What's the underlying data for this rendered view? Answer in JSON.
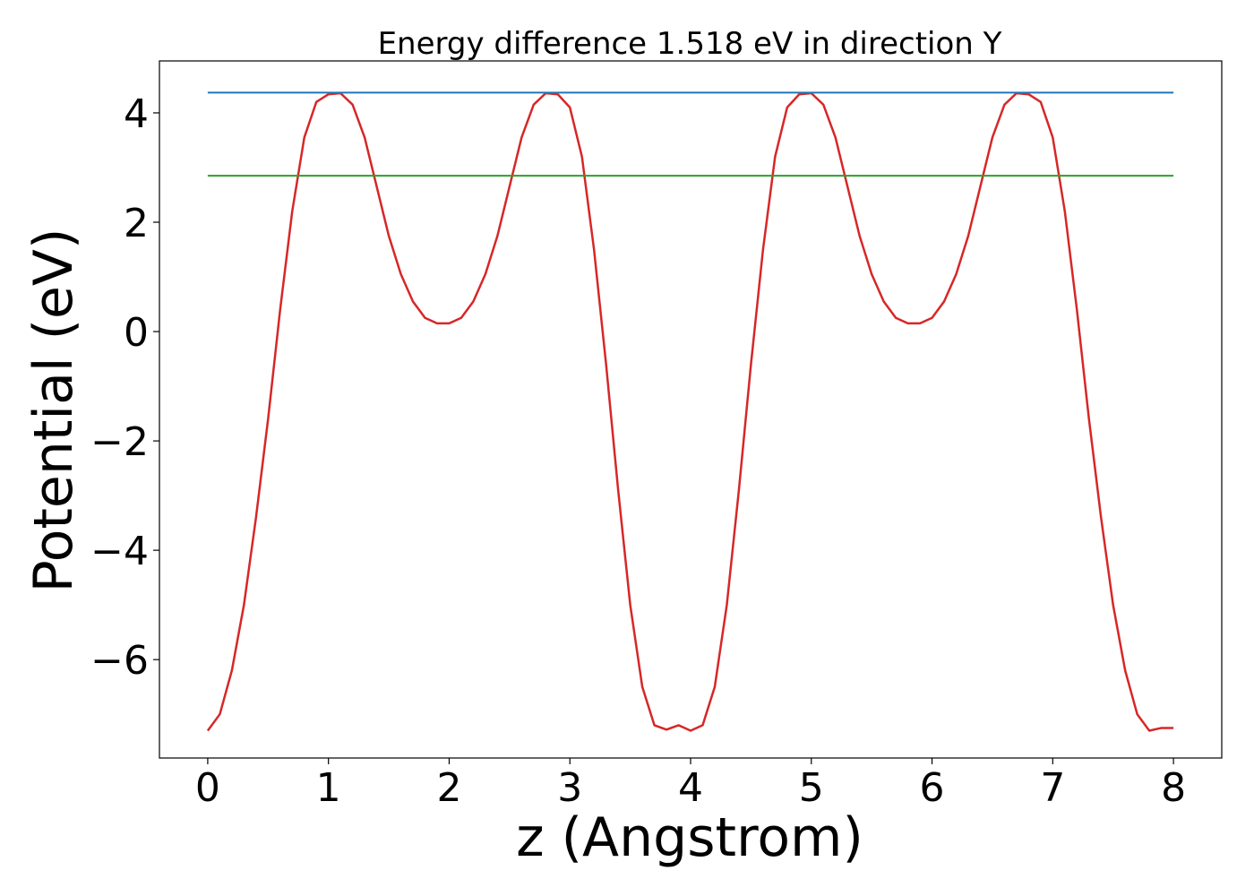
{
  "chart_data": {
    "type": "line",
    "title": "Energy difference 1.518 eV in direction Y",
    "xlabel": "z (Angstrom)",
    "ylabel": "Potential (eV)",
    "xlim": [
      -0.4,
      8.4
    ],
    "ylim": [
      -7.8,
      4.95
    ],
    "xticks": [
      0,
      1,
      2,
      3,
      4,
      5,
      6,
      7,
      8
    ],
    "xtick_labels": [
      "0",
      "1",
      "2",
      "3",
      "4",
      "5",
      "6",
      "7",
      "8"
    ],
    "yticks": [
      -6,
      -4,
      -2,
      0,
      2,
      4
    ],
    "ytick_labels": [
      "−6",
      "−4",
      "−2",
      "0",
      "2",
      "4"
    ],
    "grid": false,
    "series": [
      {
        "color": "#d62728",
        "x": [
          0,
          0.1,
          0.2,
          0.3,
          0.4,
          0.5,
          0.6,
          0.7,
          0.8,
          0.9,
          1.0,
          1.1,
          1.2,
          1.3,
          1.4,
          1.5,
          1.6,
          1.7,
          1.8,
          1.9,
          2.0,
          2.1,
          2.2,
          2.3,
          2.4,
          2.5,
          2.6,
          2.7,
          2.8,
          2.9,
          3.0,
          3.1,
          3.2,
          3.3,
          3.4,
          3.5,
          3.6,
          3.7,
          3.8,
          3.9,
          4.0,
          4.1,
          4.2,
          4.3,
          4.4,
          4.5,
          4.6,
          4.7,
          4.8,
          4.9,
          5.0,
          5.1,
          5.2,
          5.3,
          5.4,
          5.5,
          5.6,
          5.7,
          5.8,
          5.9,
          6.0,
          6.1,
          6.2,
          6.3,
          6.4,
          6.5,
          6.6,
          6.7,
          6.8,
          6.9,
          7.0,
          7.1,
          7.2,
          7.3,
          7.4,
          7.5,
          7.6,
          7.7,
          7.8,
          7.9,
          8.0
        ],
        "y": [
          -7.3,
          -7.0,
          -6.2,
          -5.0,
          -3.4,
          -1.6,
          0.4,
          2.2,
          3.55,
          4.2,
          4.34,
          4.36,
          4.15,
          3.55,
          2.65,
          1.75,
          1.05,
          0.55,
          0.25,
          0.15,
          0.15,
          0.25,
          0.55,
          1.05,
          1.75,
          2.65,
          3.55,
          4.15,
          4.36,
          4.34,
          4.1,
          3.2,
          1.5,
          -0.6,
          -2.9,
          -5.0,
          -6.5,
          -7.2,
          -7.28,
          -7.2,
          -7.3,
          -7.2,
          -6.5,
          -5.0,
          -2.9,
          -0.6,
          1.5,
          3.2,
          4.1,
          4.34,
          4.36,
          4.15,
          3.55,
          2.65,
          1.75,
          1.05,
          0.55,
          0.25,
          0.15,
          0.15,
          0.25,
          0.55,
          1.05,
          1.75,
          2.65,
          3.55,
          4.15,
          4.36,
          4.34,
          4.2,
          3.55,
          2.2,
          0.4,
          -1.6,
          -3.4,
          -5.0,
          -6.2,
          -7.0,
          -7.3,
          -7.25,
          -7.25
        ]
      },
      {
        "color": "#1f77b4",
        "x": [
          0,
          8
        ],
        "y": [
          4.37,
          4.37
        ]
      },
      {
        "color": "#2ca02c",
        "x": [
          0,
          8
        ],
        "y": [
          2.85,
          2.85
        ]
      }
    ]
  }
}
